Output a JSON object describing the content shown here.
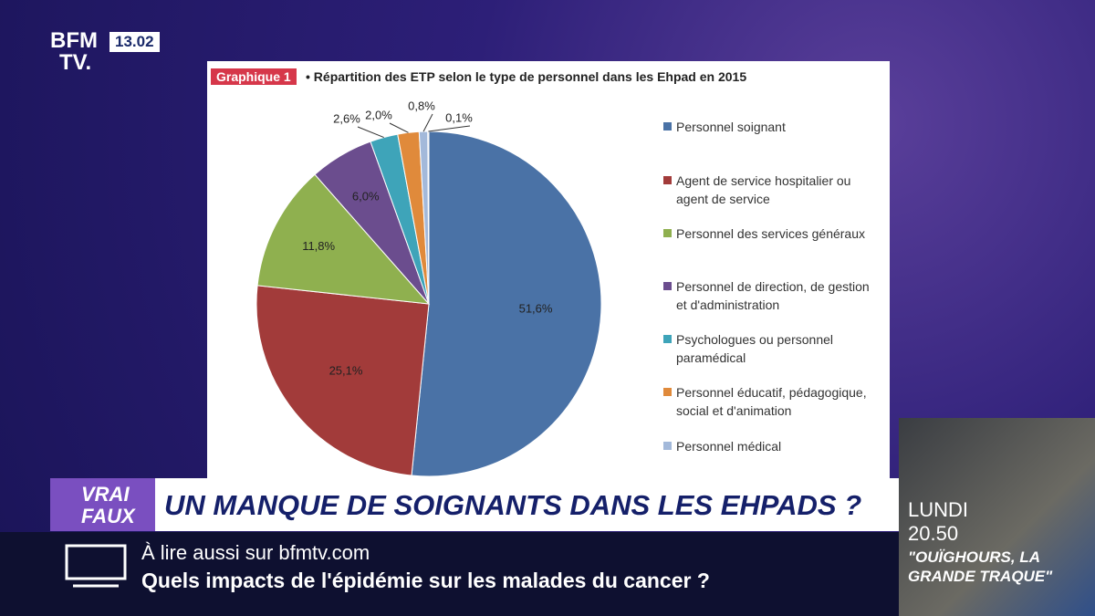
{
  "channel": {
    "logo_top": "BFM",
    "logo_bottom": "TV.",
    "time": "13.02"
  },
  "chart_data": {
    "type": "pie",
    "badge": "Graphique 1",
    "title": "• Répartition des ETP selon le type de personnel dans les Ehpad en 2015",
    "categories": [
      "Personnel soignant",
      "Agent de service hospitalier ou agent de service",
      "Personnel des services généraux",
      "Personnel de direction, de gestion et d'administration",
      "Psychologues ou personnel paramédical",
      "Personnel éducatif, pédagogique, social et d'animation",
      "Personnel médical",
      null
    ],
    "values": [
      51.6,
      25.1,
      11.8,
      6.0,
      2.6,
      2.0,
      0.8,
      0.1
    ],
    "value_labels": [
      "51,6%",
      "25,1%",
      "11,8%",
      "6,0%",
      "2,6%",
      "2,0%",
      "0,8%",
      "0,1%"
    ],
    "colors": [
      "#4a72a6",
      "#a23b3a",
      "#8fb04f",
      "#6b4d8e",
      "#3ea4b9",
      "#e08a3b",
      "#a3b9da",
      "#c9c9d9"
    ]
  },
  "banner": {
    "tag_top": "VRAI",
    "tag_bottom": "FAUX",
    "headline": "UN MANQUE DE SOIGNANTS DANS LES EHPADS ?"
  },
  "ticker": {
    "intro": "À lire aussi sur bfmtv.com",
    "headline": "Quels impacts de l'épidémie sur les malades du cancer ?"
  },
  "promo": {
    "day": "LUNDI",
    "time": "20.50",
    "title": "\"OUÏGHOURS, LA GRANDE TRAQUE\""
  }
}
